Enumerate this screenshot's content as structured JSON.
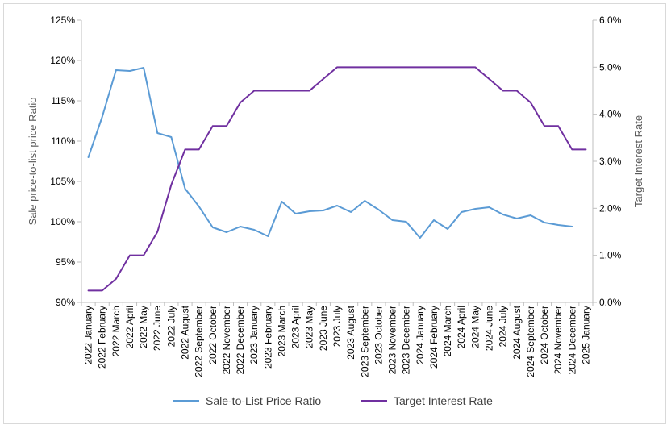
{
  "chart_data": {
    "type": "line",
    "categories": [
      "2022 January",
      "2022 February",
      "2022 March",
      "2022 April",
      "2022 May",
      "2022 June",
      "2022 July",
      "2022 August",
      "2022 September",
      "2022 October",
      "2022 November",
      "2022 December",
      "2023 January",
      "2023 February",
      "2023 March",
      "2023 April",
      "2023 May",
      "2023 June",
      "2023 July",
      "2023 August",
      "2023 September",
      "2023 October",
      "2023 November",
      "2023 December",
      "2024 January",
      "2024 February",
      "2024 March",
      "2024 April",
      "2024 May",
      "2024 June",
      "2024 July",
      "2024 August",
      "2024 September",
      "2024 October",
      "2024 November",
      "2024 December",
      "2025 January"
    ],
    "series": [
      {
        "name": "Sale-to-List Price Ratio",
        "axis": "left",
        "color": "#5b9bd5",
        "values": [
          108.0,
          113.0,
          118.8,
          118.7,
          119.1,
          111.0,
          110.5,
          104.1,
          101.9,
          99.3,
          98.7,
          99.4,
          99.0,
          98.2,
          102.5,
          101.0,
          101.3,
          101.4,
          102.0,
          101.2,
          102.6,
          101.5,
          100.2,
          100.0,
          98.0,
          100.2,
          99.1,
          101.2,
          101.6,
          101.8,
          100.9,
          100.4,
          100.8,
          99.9,
          99.6,
          99.4,
          null
        ]
      },
      {
        "name": "Target Interest Rate",
        "axis": "right",
        "color": "#7030a0",
        "values": [
          0.25,
          0.25,
          0.5,
          1.0,
          1.0,
          1.5,
          2.5,
          3.25,
          3.25,
          3.75,
          3.75,
          4.25,
          4.5,
          4.5,
          4.5,
          4.5,
          4.5,
          4.75,
          5.0,
          5.0,
          5.0,
          5.0,
          5.0,
          5.0,
          5.0,
          5.0,
          5.0,
          5.0,
          5.0,
          4.75,
          4.5,
          4.5,
          4.25,
          3.75,
          3.75,
          3.25,
          3.25
        ]
      }
    ],
    "y_left": {
      "label": "Sale price-to-list price Ratio",
      "min": 90,
      "max": 125,
      "step": 5,
      "tick_labels": [
        "90%",
        "95%",
        "100%",
        "105%",
        "110%",
        "115%",
        "120%",
        "125%"
      ]
    },
    "y_right": {
      "label": "Target Interest Rate",
      "min": 0,
      "max": 6,
      "step": 1,
      "tick_labels": [
        "0.0%",
        "1.0%",
        "2.0%",
        "3.0%",
        "4.0%",
        "5.0%",
        "6.0%"
      ]
    },
    "grid": false,
    "legend_position": "bottom"
  }
}
